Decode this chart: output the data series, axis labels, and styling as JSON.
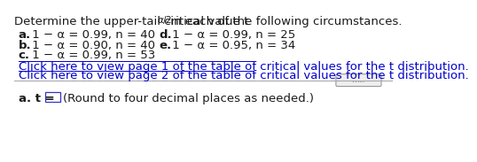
{
  "title_part1": "Determine the upper-tail critical value t",
  "title_subscript": "α/2",
  "title_part2": " in each of the following circumstances.",
  "items_left": [
    [
      "a.",
      " 1 − α = 0.99, n = 40"
    ],
    [
      "b.",
      " 1 − α = 0.90, n = 40"
    ],
    [
      "c.",
      " 1 − α = 0.99, n = 53"
    ]
  ],
  "items_right": [
    [
      "d.",
      " 1 − α = 0.99, n = 25"
    ],
    [
      "e.",
      " 1 − α = 0.95, n = 34"
    ]
  ],
  "link1": "Click here to view page 1 of the table of critical values for the t distribution.",
  "link2": "Click here to view page 2 of the table of critical values for the t distribution.",
  "bottom_label": "a. t =",
  "bottom_suffix": "(Round to four decimal places as needed.)",
  "bg_color": "#ffffff",
  "text_color": "#1a1a1a",
  "link_color": "#0000cc",
  "font_size": 9.5,
  "dots": "....."
}
